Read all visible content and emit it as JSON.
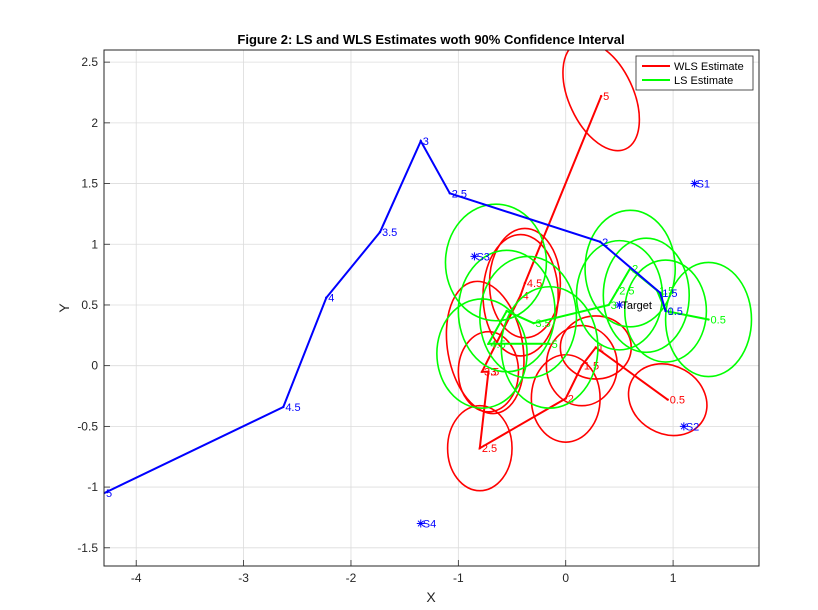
{
  "chart_data": {
    "type": "line",
    "title": "Figure 2: LS and WLS Estimates woth 90% Confidence Interval",
    "xlabel": "X",
    "ylabel": "Y",
    "xlim": [
      -4.3,
      1.8
    ],
    "ylim": [
      -1.65,
      2.6
    ],
    "xticks": [
      -4,
      -3,
      -2,
      -1,
      0,
      1
    ],
    "yticks": [
      -1.5,
      -1,
      -0.5,
      0,
      0.5,
      1,
      1.5,
      2,
      2.5
    ],
    "grid": true,
    "legend_position": "top-right",
    "colors": {
      "blue": "#0000ff",
      "red": "#ff0000",
      "green": "#00ff00",
      "target": "#0000ff"
    },
    "series": [
      {
        "name": "WLS Estimate",
        "color": "#ff0000",
        "points": [
          {
            "x": 0.95,
            "y": -0.28,
            "label": "0.5"
          },
          {
            "x": 0.28,
            "y": 0.15,
            "label": "1"
          },
          {
            "x": 0.15,
            "y": 0.0,
            "label": "1.5"
          },
          {
            "x": 0.0,
            "y": -0.27,
            "label": "2"
          },
          {
            "x": -0.8,
            "y": -0.68,
            "label": "2.5"
          },
          {
            "x": -0.72,
            "y": -0.05,
            "label": "3"
          },
          {
            "x": -0.78,
            "y": -0.05,
            "label": "3.5"
          },
          {
            "x": -0.42,
            "y": 0.58,
            "label": "4"
          },
          {
            "x": -0.38,
            "y": 0.68,
            "label": "4.5"
          },
          {
            "x": 0.33,
            "y": 2.22,
            "label": "5"
          }
        ],
        "ellipses": [
          {
            "cx": 0.95,
            "cy": -0.28,
            "rx": 0.38,
            "ry": 0.28,
            "angle": -30
          },
          {
            "cx": 0.28,
            "cy": 0.15,
            "rx": 0.33,
            "ry": 0.26,
            "angle": 0
          },
          {
            "cx": 0.15,
            "cy": 0.0,
            "rx": 0.33,
            "ry": 0.33,
            "angle": 0
          },
          {
            "cx": 0.0,
            "cy": -0.27,
            "rx": 0.32,
            "ry": 0.36,
            "angle": 0
          },
          {
            "cx": -0.8,
            "cy": -0.68,
            "rx": 0.3,
            "ry": 0.35,
            "angle": 0
          },
          {
            "cx": -0.72,
            "cy": -0.05,
            "rx": 0.28,
            "ry": 0.33,
            "angle": 0
          },
          {
            "cx": -0.75,
            "cy": 0.15,
            "rx": 0.35,
            "ry": 0.55,
            "angle": 10
          },
          {
            "cx": -0.42,
            "cy": 0.58,
            "rx": 0.35,
            "ry": 0.5,
            "angle": 0
          },
          {
            "cx": -0.38,
            "cy": 0.68,
            "rx": 0.33,
            "ry": 0.45,
            "angle": 0
          },
          {
            "cx": 0.33,
            "cy": 2.22,
            "rx": 0.3,
            "ry": 0.48,
            "angle": 25
          }
        ]
      },
      {
        "name": "LS Estimate",
        "color": "#00ff00",
        "points": [
          {
            "x": 1.33,
            "y": 0.38,
            "label": "0.5"
          },
          {
            "x": 0.93,
            "y": 0.45,
            "label": "1"
          },
          {
            "x": 0.85,
            "y": 0.62,
            "label": "1.5"
          },
          {
            "x": 0.6,
            "y": 0.8,
            "label": "2"
          },
          {
            "x": 0.48,
            "y": 0.62,
            "label": "2.5"
          },
          {
            "x": 0.4,
            "y": 0.5,
            "label": "3"
          },
          {
            "x": -0.3,
            "y": 0.35,
            "label": "3.5"
          },
          {
            "x": -0.55,
            "y": 0.45,
            "label": "4"
          },
          {
            "x": -0.72,
            "y": 0.18,
            "label": "4.5"
          },
          {
            "x": -0.15,
            "y": 0.18,
            "label": "5"
          }
        ],
        "ellipses": [
          {
            "cx": 1.33,
            "cy": 0.38,
            "rx": 0.4,
            "ry": 0.47,
            "angle": 0
          },
          {
            "cx": 0.93,
            "cy": 0.45,
            "rx": 0.38,
            "ry": 0.42,
            "angle": 0
          },
          {
            "cx": 0.75,
            "cy": 0.58,
            "rx": 0.4,
            "ry": 0.47,
            "angle": 0
          },
          {
            "cx": 0.6,
            "cy": 0.8,
            "rx": 0.42,
            "ry": 0.48,
            "angle": 0
          },
          {
            "cx": 0.5,
            "cy": 0.58,
            "rx": 0.4,
            "ry": 0.45,
            "angle": 0
          },
          {
            "cx": -0.65,
            "cy": 0.85,
            "rx": 0.47,
            "ry": 0.48,
            "angle": 0
          },
          {
            "cx": -0.35,
            "cy": 0.4,
            "rx": 0.45,
            "ry": 0.5,
            "angle": 0
          },
          {
            "cx": -0.55,
            "cy": 0.45,
            "rx": 0.45,
            "ry": 0.5,
            "angle": 0
          },
          {
            "cx": -0.78,
            "cy": 0.1,
            "rx": 0.42,
            "ry": 0.45,
            "angle": 0
          },
          {
            "cx": -0.15,
            "cy": 0.15,
            "rx": 0.45,
            "ry": 0.5,
            "angle": 0
          }
        ]
      },
      {
        "color": "#0000ff",
        "points": [
          {
            "x": 0.93,
            "y": 0.45,
            "label": "0.5"
          },
          {
            "x": 0.88,
            "y": 0.6,
            "label": "1.5"
          },
          {
            "x": 0.32,
            "y": 1.02,
            "label": "2"
          },
          {
            "x": -1.08,
            "y": 1.42,
            "label": "2.5"
          },
          {
            "x": -1.35,
            "y": 1.85,
            "label": "3"
          },
          {
            "x": -1.73,
            "y": 1.1,
            "label": "3.5"
          },
          {
            "x": -2.23,
            "y": 0.56,
            "label": "4"
          },
          {
            "x": -2.63,
            "y": -0.34,
            "label": "4.5"
          },
          {
            "x": -4.3,
            "y": -1.05,
            "label": "5"
          }
        ]
      }
    ],
    "markers": [
      {
        "x": 1.2,
        "y": 1.5,
        "label": "S1"
      },
      {
        "x": 1.1,
        "y": -0.5,
        "label": "S2"
      },
      {
        "x": -0.85,
        "y": 0.9,
        "label": "S3"
      },
      {
        "x": -1.35,
        "y": -1.3,
        "label": "S4"
      },
      {
        "x": 0.5,
        "y": 0.5,
        "label": "Target"
      }
    ],
    "legend": [
      {
        "label": "WLS Estimate",
        "color": "#ff0000"
      },
      {
        "label": "LS Estimate",
        "color": "#00ff00"
      }
    ]
  }
}
